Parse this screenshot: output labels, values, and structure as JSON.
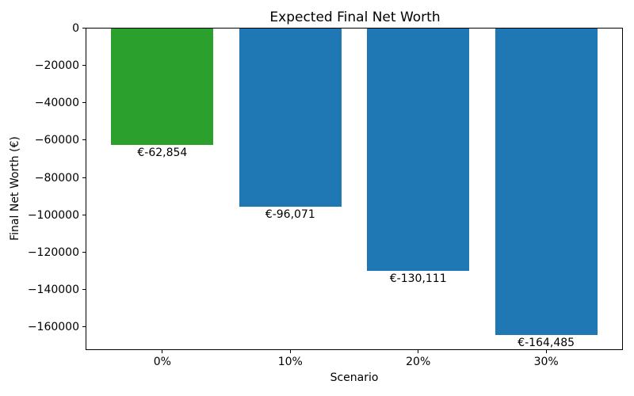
{
  "chart_data": {
    "type": "bar",
    "title": "Expected Final Net Worth",
    "xlabel": "Scenario",
    "ylabel": "Final Net Worth (€)",
    "categories": [
      "0%",
      "10%",
      "20%",
      "30%"
    ],
    "values": [
      -62854,
      -96071,
      -130111,
      -164485
    ],
    "bar_labels": [
      "€-62,854",
      "€-96,071",
      "€-130,111",
      "€-164,485"
    ],
    "bar_colors": [
      "#2ca02c",
      "#1f77b4",
      "#1f77b4",
      "#1f77b4"
    ],
    "default_bar_color": "#1f77b4",
    "highlight_color": "#2ca02c",
    "ylim": [
      -172709,
      0
    ],
    "yticks": [
      0,
      -20000,
      -40000,
      -60000,
      -80000,
      -100000,
      -120000,
      -140000,
      -160000
    ],
    "ytick_labels": [
      "0",
      "−20000",
      "−40000",
      "−60000",
      "−80000",
      "−100000",
      "−120000",
      "−140000",
      "−160000"
    ],
    "bar_width_fraction": 0.8,
    "grid": false,
    "legend": "none",
    "background": "#ffffff",
    "text_color": "#000000"
  }
}
